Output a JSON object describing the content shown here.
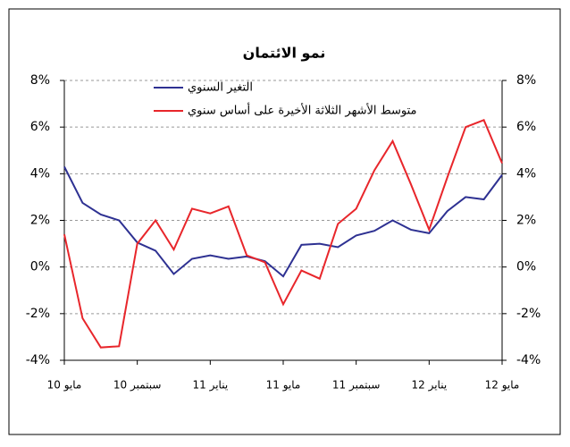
{
  "chart_data": {
    "type": "line",
    "title": "نمو الائتمان",
    "categories": [
      "مايو 10",
      null,
      null,
      null,
      "سبتمبر 10",
      null,
      null,
      null,
      "يناير 11",
      null,
      null,
      null,
      "مايو 11",
      null,
      null,
      null,
      "سبتمبر 11",
      null,
      null,
      null,
      "يناير 12",
      null,
      null,
      null,
      "مايو 12"
    ],
    "series": [
      {
        "name": "التغير السنوي",
        "color": "#2e3192",
        "values": [
          4.3,
          2.75,
          2.25,
          2.0,
          1.05,
          0.7,
          -0.3,
          0.35,
          0.5,
          0.35,
          0.45,
          0.25,
          -0.4,
          0.95,
          1.0,
          0.85,
          1.35,
          1.55,
          2.0,
          1.6,
          1.45,
          2.4,
          3.0,
          2.9,
          3.95
        ]
      },
      {
        "name": "متوسط الأشهر الثلاثة الأخيرة على أساس سنوي",
        "color": "#e8262b",
        "values": [
          1.4,
          -2.2,
          -3.45,
          -3.4,
          1.0,
          2.0,
          0.75,
          2.5,
          2.3,
          2.6,
          0.5,
          0.2,
          -1.6,
          -0.15,
          -0.5,
          1.85,
          2.5,
          4.15,
          5.4,
          3.55,
          1.6,
          3.85,
          6.0,
          6.3,
          4.45
        ]
      }
    ],
    "ylim": [
      -4,
      8
    ],
    "yticks": [
      {
        "value": -4,
        "label": "-4%"
      },
      {
        "value": -2,
        "label": "-2%"
      },
      {
        "value": 0,
        "label": "0%"
      },
      {
        "value": 2,
        "label": "2%"
      },
      {
        "value": 4,
        "label": "4%"
      },
      {
        "value": 6,
        "label": "6%"
      },
      {
        "value": 8,
        "label": "8%"
      }
    ],
    "y2lim": [
      -4,
      8
    ],
    "y2ticks": [
      {
        "value": -4,
        "label": "-4%"
      },
      {
        "value": -2,
        "label": "-2%"
      },
      {
        "value": 0,
        "label": "0%"
      },
      {
        "value": 2,
        "label": "2%"
      },
      {
        "value": 4,
        "label": "4%"
      },
      {
        "value": 6,
        "label": "6%"
      },
      {
        "value": 8,
        "label": "8%"
      }
    ],
    "grid": true
  }
}
